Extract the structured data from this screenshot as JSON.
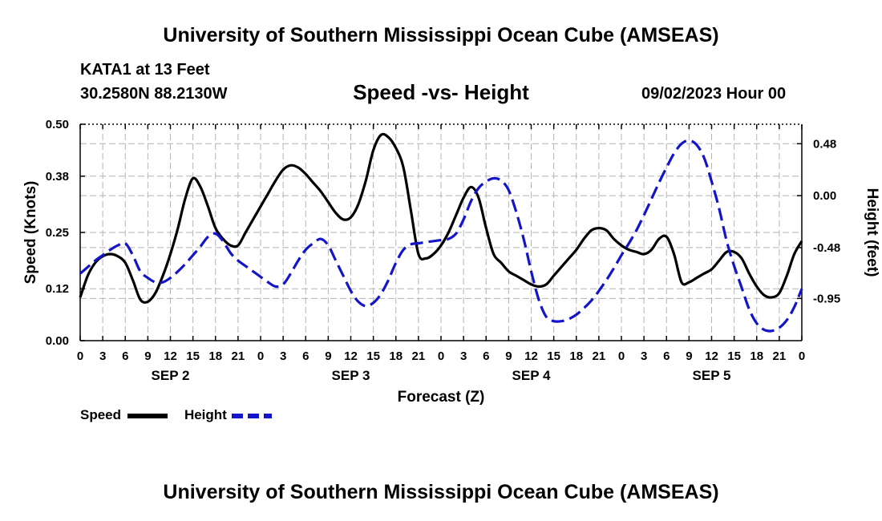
{
  "page": {
    "title_top": "University of Southern Mississippi Ocean Cube (AMSEAS)",
    "title_bottom": "University of Southern Mississippi Ocean Cube (AMSEAS)",
    "station": "KATA1 at 13 Feet",
    "coords": "30.2580N  88.2130W",
    "subtitle": "Speed -vs- Height",
    "date": "09/02/2023 Hour 00"
  },
  "legend": {
    "speed_label": "Speed",
    "height_label": "Height"
  },
  "colors": {
    "speed": "#000000",
    "height": "#1414c8",
    "grid": "#b4b4b4"
  },
  "chart_data": {
    "type": "line",
    "title": "Speed -vs- Height",
    "xlabel": "Forecast (Z)",
    "ylabel": "Speed (Knots)",
    "ylabel_right": "Height (feet)",
    "x_range_hours": [
      0,
      96
    ],
    "ylim": [
      0,
      0.5
    ],
    "ylim_right": [
      -1.34,
      0.66
    ],
    "yticks": [
      "0.00",
      "0.12",
      "0.25",
      "0.38",
      "0.50"
    ],
    "yticks_right": [
      "0.48",
      "0.00",
      "-0.48",
      "-0.95"
    ],
    "yticks_right_values": [
      0.48,
      0.0,
      -0.48,
      -0.95
    ],
    "xtick_hours": [
      0,
      3,
      6,
      9,
      12,
      15,
      18,
      21,
      24,
      27,
      30,
      33,
      36,
      39,
      42,
      45,
      48,
      51,
      54,
      57,
      60,
      63,
      66,
      69,
      72,
      75,
      78,
      81,
      84,
      87,
      90,
      93,
      96
    ],
    "xtick_labels": [
      "0",
      "3",
      "6",
      "9",
      "12",
      "15",
      "18",
      "21",
      "0",
      "3",
      "6",
      "9",
      "12",
      "15",
      "18",
      "21",
      "0",
      "3",
      "6",
      "9",
      "12",
      "15",
      "18",
      "21",
      "0",
      "3",
      "6",
      "9",
      "12",
      "15",
      "18",
      "21",
      "0"
    ],
    "day_labels": [
      {
        "hour": 12,
        "label": "SEP 2"
      },
      {
        "hour": 36,
        "label": "SEP 3"
      },
      {
        "hour": 60,
        "label": "SEP 4"
      },
      {
        "hour": 84,
        "label": "SEP 5"
      }
    ],
    "series": [
      {
        "name": "Speed",
        "axis": "left",
        "style": "solid",
        "x": [
          0,
          1,
          2,
          3,
          4,
          5,
          6,
          7,
          8,
          9,
          10,
          11,
          12,
          13,
          14,
          15,
          16,
          17,
          18,
          19,
          20,
          21,
          22,
          23,
          24,
          25,
          26,
          27,
          28,
          29,
          30,
          31,
          32,
          33,
          34,
          35,
          36,
          37,
          38,
          39,
          40,
          41,
          42,
          43,
          44,
          45,
          46,
          47,
          48,
          49,
          50,
          51,
          52,
          53,
          54,
          55,
          56,
          57,
          58,
          59,
          60,
          61,
          62,
          63,
          64,
          65,
          66,
          67,
          68,
          69,
          70,
          71,
          72,
          73,
          74,
          75,
          76,
          77,
          78,
          79,
          80,
          81,
          82,
          83,
          84,
          85,
          86,
          87,
          88,
          89,
          90,
          91,
          92,
          93,
          94,
          95,
          96
        ],
        "values": [
          0.1,
          0.15,
          0.18,
          0.195,
          0.2,
          0.195,
          0.18,
          0.14,
          0.095,
          0.09,
          0.11,
          0.15,
          0.2,
          0.26,
          0.33,
          0.375,
          0.355,
          0.31,
          0.26,
          0.235,
          0.22,
          0.22,
          0.25,
          0.28,
          0.31,
          0.34,
          0.37,
          0.395,
          0.405,
          0.4,
          0.385,
          0.365,
          0.345,
          0.32,
          0.295,
          0.28,
          0.285,
          0.315,
          0.37,
          0.44,
          0.475,
          0.47,
          0.445,
          0.4,
          0.3,
          0.2,
          0.19,
          0.2,
          0.22,
          0.25,
          0.29,
          0.33,
          0.355,
          0.33,
          0.26,
          0.2,
          0.18,
          0.16,
          0.15,
          0.14,
          0.13,
          0.125,
          0.13,
          0.15,
          0.17,
          0.19,
          0.21,
          0.235,
          0.255,
          0.26,
          0.255,
          0.235,
          0.22,
          0.21,
          0.205,
          0.2,
          0.21,
          0.235,
          0.24,
          0.2,
          0.135,
          0.135,
          0.145,
          0.155,
          0.165,
          0.185,
          0.205,
          0.205,
          0.19,
          0.155,
          0.125,
          0.105,
          0.1,
          0.11,
          0.15,
          0.2,
          0.23
        ]
      },
      {
        "name": "Height",
        "axis": "right",
        "style": "dashed",
        "x": [
          0,
          1,
          2,
          3,
          4,
          5,
          6,
          7,
          8,
          9,
          10,
          11,
          12,
          13,
          14,
          15,
          16,
          17,
          18,
          19,
          20,
          21,
          22,
          23,
          24,
          25,
          26,
          27,
          28,
          29,
          30,
          31,
          32,
          33,
          34,
          35,
          36,
          37,
          38,
          39,
          40,
          41,
          42,
          43,
          44,
          45,
          46,
          47,
          48,
          49,
          50,
          51,
          52,
          53,
          54,
          55,
          56,
          57,
          58,
          59,
          60,
          61,
          62,
          63,
          64,
          65,
          66,
          67,
          68,
          69,
          70,
          71,
          72,
          73,
          74,
          75,
          76,
          77,
          78,
          79,
          80,
          81,
          82,
          83,
          84,
          85,
          86,
          87,
          88,
          89,
          90,
          91,
          92,
          93,
          94,
          95,
          96
        ],
        "values": [
          -0.72,
          -0.66,
          -0.6,
          -0.55,
          -0.5,
          -0.46,
          -0.44,
          -0.55,
          -0.7,
          -0.76,
          -0.8,
          -0.8,
          -0.76,
          -0.7,
          -0.63,
          -0.55,
          -0.47,
          -0.38,
          -0.35,
          -0.42,
          -0.53,
          -0.6,
          -0.65,
          -0.7,
          -0.75,
          -0.8,
          -0.84,
          -0.82,
          -0.72,
          -0.6,
          -0.5,
          -0.44,
          -0.4,
          -0.46,
          -0.6,
          -0.74,
          -0.88,
          -0.98,
          -1.02,
          -0.99,
          -0.91,
          -0.78,
          -0.62,
          -0.5,
          -0.45,
          -0.44,
          -0.43,
          -0.42,
          -0.41,
          -0.4,
          -0.35,
          -0.22,
          -0.05,
          0.07,
          0.13,
          0.16,
          0.14,
          0.05,
          -0.15,
          -0.4,
          -0.7,
          -0.96,
          -1.12,
          -1.16,
          -1.16,
          -1.14,
          -1.1,
          -1.04,
          -0.97,
          -0.88,
          -0.78,
          -0.67,
          -0.55,
          -0.44,
          -0.32,
          -0.18,
          -0.03,
          0.12,
          0.26,
          0.39,
          0.48,
          0.51,
          0.47,
          0.35,
          0.13,
          -0.12,
          -0.42,
          -0.65,
          -0.85,
          -1.05,
          -1.18,
          -1.24,
          -1.25,
          -1.22,
          -1.15,
          -1.03,
          -0.86
        ]
      }
    ]
  }
}
